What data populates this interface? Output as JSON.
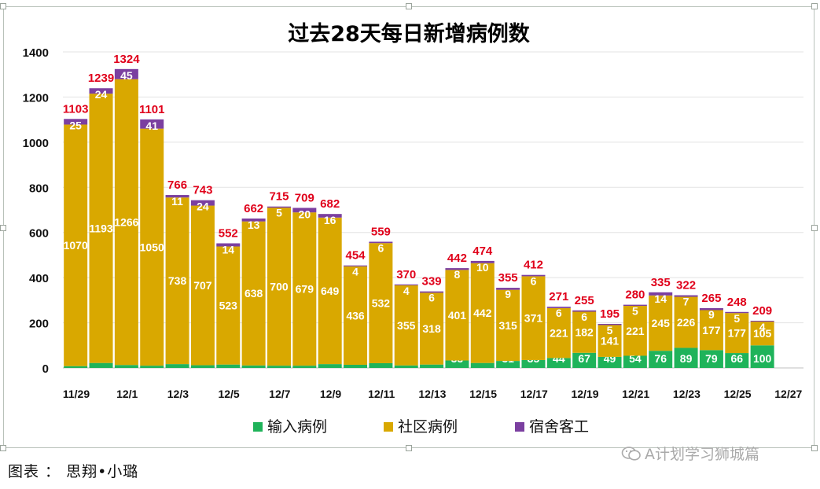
{
  "chart_data": {
    "type": "bar",
    "stacked": true,
    "title": "过去28天每日新增病例数",
    "ylim": [
      0,
      1400
    ],
    "yticks": [
      0,
      200,
      400,
      600,
      800,
      1000,
      1200,
      1400
    ],
    "x_tick_labels": [
      "11/29",
      "12/1",
      "12/3",
      "12/5",
      "12/7",
      "12/9",
      "12/11",
      "12/13",
      "12/15",
      "12/17",
      "12/19",
      "12/21",
      "12/23",
      "12/25",
      "12/27"
    ],
    "legend_position": "bottom",
    "grid": true,
    "series": [
      {
        "name": "输入病例",
        "color": "#1fb35a",
        "values": [
          8,
          22,
          13,
          10,
          17,
          12,
          15,
          11,
          10,
          10,
          17,
          14,
          21,
          11,
          15,
          33,
          22,
          31,
          35,
          44,
          67,
          49,
          54,
          76,
          89,
          79,
          66,
          100
        ]
      },
      {
        "name": "社区病例",
        "color": "#d9a800",
        "values": [
          1070,
          1193,
          1266,
          1050,
          738,
          707,
          523,
          638,
          700,
          679,
          649,
          436,
          532,
          355,
          318,
          401,
          442,
          315,
          371,
          221,
          182,
          141,
          221,
          245,
          226,
          177,
          177,
          105
        ]
      },
      {
        "name": "宿舍客工",
        "color": "#7b3fa0",
        "values": [
          25,
          24,
          45,
          41,
          11,
          24,
          14,
          13,
          5,
          20,
          16,
          4,
          6,
          4,
          6,
          8,
          10,
          9,
          6,
          6,
          6,
          5,
          5,
          14,
          7,
          9,
          5,
          4
        ]
      }
    ],
    "totals": [
      1103,
      1239,
      1324,
      1101,
      766,
      743,
      552,
      662,
      715,
      709,
      682,
      454,
      559,
      370,
      339,
      442,
      474,
      355,
      412,
      271,
      255,
      195,
      280,
      335,
      322,
      265,
      248,
      209
    ],
    "label_colors": {
      "segment": "#ffffff",
      "total": "#e0001a"
    }
  },
  "caption": "图表 ： 思翔•小璐",
  "watermark": "A计划学习狮城篇"
}
